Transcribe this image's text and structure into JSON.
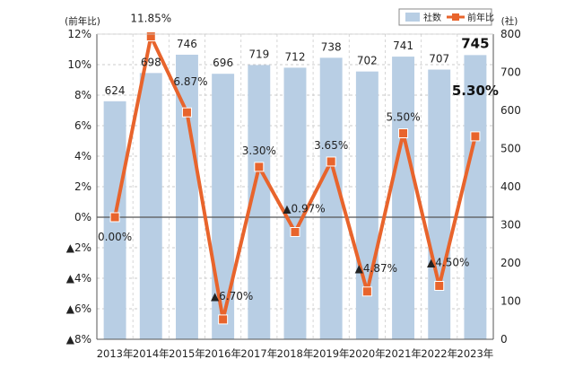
{
  "chart_data": {
    "type": "bar+line",
    "categories": [
      "2013年",
      "2014年",
      "2015年",
      "2016年",
      "2017年",
      "2018年",
      "2019年",
      "2020年",
      "2021年",
      "2022年",
      "2023年"
    ],
    "series": [
      {
        "name": "社数",
        "type": "bar",
        "axis": "right",
        "values": [
          624,
          698,
          746,
          696,
          719,
          712,
          738,
          702,
          741,
          707,
          745
        ],
        "labels": [
          "624",
          "698",
          "746",
          "696",
          "719",
          "712",
          "738",
          "702",
          "741",
          "707",
          "745"
        ],
        "color": "#b8cee4"
      },
      {
        "name": "前年比",
        "type": "line",
        "axis": "left",
        "values": [
          0.0,
          11.85,
          6.87,
          -6.7,
          3.3,
          -0.97,
          3.65,
          -4.87,
          5.5,
          -4.5,
          5.3
        ],
        "labels": [
          "0.00%",
          "11.85%",
          "6.87%",
          "▲6.70%",
          "3.30%",
          "▲0.97%",
          "3.65%",
          "▲4.87%",
          "5.50%",
          "▲4.50%",
          "5.30%"
        ],
        "color": "#e8642c"
      }
    ],
    "left_axis": {
      "unit": "(前年比)",
      "range": [
        -8,
        12
      ],
      "ticks": [
        12,
        10,
        8,
        6,
        4,
        2,
        0,
        -2,
        -4,
        -6,
        -8
      ],
      "tick_labels": [
        "12%",
        "10%",
        "8%",
        "6%",
        "4%",
        "2%",
        "0%",
        "▲2%",
        "▲4%",
        "▲6%",
        "▲8%"
      ]
    },
    "right_axis": {
      "unit": "(社)",
      "range": [
        0,
        800
      ],
      "ticks": [
        800,
        700,
        600,
        500,
        400,
        300,
        200,
        100,
        0
      ],
      "tick_labels": [
        "800",
        "700",
        "600",
        "500",
        "400",
        "300",
        "200",
        "100",
        "0"
      ]
    },
    "legend": {
      "placement": "top-right",
      "items": [
        {
          "label": "社数",
          "kind": "bar"
        },
        {
          "label": "前年比",
          "kind": "line"
        }
      ]
    },
    "grid": true,
    "zero_line_color": "#555555"
  }
}
